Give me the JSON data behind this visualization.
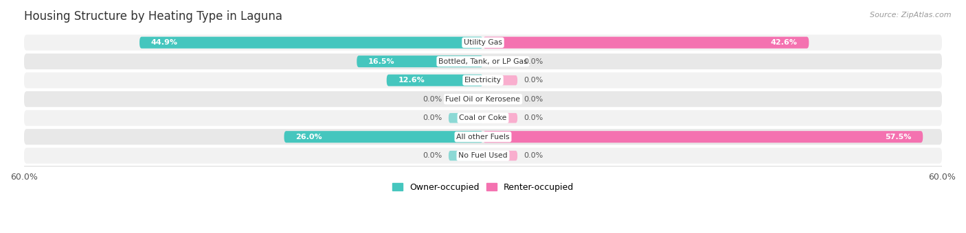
{
  "title": "Housing Structure by Heating Type in Laguna",
  "source": "Source: ZipAtlas.com",
  "categories": [
    "Utility Gas",
    "Bottled, Tank, or LP Gas",
    "Electricity",
    "Fuel Oil or Kerosene",
    "Coal or Coke",
    "All other Fuels",
    "No Fuel Used"
  ],
  "owner_values": [
    44.9,
    16.5,
    12.6,
    0.0,
    0.0,
    26.0,
    0.0
  ],
  "renter_values": [
    42.6,
    0.0,
    0.0,
    0.0,
    0.0,
    57.5,
    0.0
  ],
  "renter_stub": [
    0.0,
    5.0,
    5.0,
    5.0,
    5.0,
    0.0,
    5.0
  ],
  "owner_color": "#45C6BE",
  "renter_color": "#F472B0",
  "renter_stub_color": "#F9AECE",
  "owner_stub_color": "#8CD9D5",
  "xlim": 60.0,
  "legend_owner": "Owner-occupied",
  "legend_renter": "Renter-occupied",
  "title_fontsize": 12,
  "source_fontsize": 8,
  "bar_height": 0.62,
  "row_colors": [
    "#f2f2f2",
    "#e8e8e8"
  ]
}
